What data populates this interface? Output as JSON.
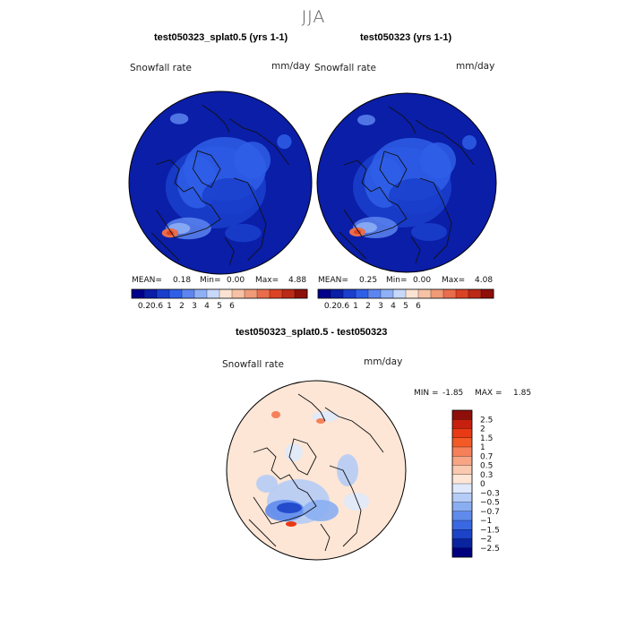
{
  "figure": {
    "season": "JJA",
    "panels": [
      {
        "title": "test050323_splat0.5 (yrs 1-1)",
        "variable": "Snowfall rate",
        "units": "mm/day",
        "stats": {
          "mean_label": "MEAN=",
          "mean": "0.18",
          "min_label": "Min=",
          "min": "0.00",
          "max_label": "Max=",
          "max": "4.88"
        }
      },
      {
        "title": "test050323 (yrs 1-1)",
        "variable": "Snowfall rate",
        "units": "mm/day",
        "stats": {
          "mean_label": "MEAN=",
          "mean": "0.25",
          "min_label": "Min=",
          "min": "0.00",
          "max_label": "Max=",
          "max": "4.08"
        }
      },
      {
        "title": "test050323_splat0.5 - test050323",
        "variable": "Snowfall rate",
        "units": "mm/day",
        "stats": {
          "min_label": "MIN =",
          "min": "-1.85",
          "max_label": "MAX =",
          "max": "1.85"
        }
      }
    ],
    "colorbar_abs": {
      "ticks": [
        "0.2",
        "0.6",
        "1",
        "2",
        "3",
        "4",
        "5",
        "6"
      ],
      "colors": [
        "#00008b",
        "#0a1ea8",
        "#1a3fcc",
        "#2f5fe8",
        "#5c85f0",
        "#8fb0f5",
        "#c7d8fa",
        "#fbe3d3",
        "#f6c1a5",
        "#f09a78",
        "#e96d4c",
        "#db4325",
        "#bb2a16",
        "#8e0f0a"
      ]
    },
    "colorbar_diff": {
      "labels": [
        "2.5",
        "2",
        "1.5",
        "1",
        "0.7",
        "0.5",
        "0.3",
        "0",
        "−0.3",
        "−0.5",
        "−0.7",
        "−1",
        "−1.5",
        "−2",
        "−2.5"
      ],
      "colors": [
        "#8e0f0a",
        "#c8200f",
        "#e83a14",
        "#f35a26",
        "#f5805a",
        "#f7a585",
        "#f9c9b0",
        "#fde6d6",
        "#dfe9fb",
        "#b5ccf6",
        "#8aaef2",
        "#5f8bec",
        "#3a68e2",
        "#1c44c8",
        "#0a24a0",
        "#00007f"
      ]
    }
  },
  "chart_data": [
    {
      "type": "heatmap",
      "title": "test050323_splat0.5 (yrs 1-1)",
      "variable": "Snowfall rate",
      "units": "mm/day",
      "projection": "north polar stereographic",
      "mean": 0.18,
      "min": 0.0,
      "max": 4.88,
      "colorbar_ticks": [
        0.2,
        0.6,
        1,
        2,
        3,
        4,
        5,
        6
      ]
    },
    {
      "type": "heatmap",
      "title": "test050323 (yrs 1-1)",
      "variable": "Snowfall rate",
      "units": "mm/day",
      "projection": "north polar stereographic",
      "mean": 0.25,
      "min": 0.0,
      "max": 4.08,
      "colorbar_ticks": [
        0.2,
        0.6,
        1,
        2,
        3,
        4,
        5,
        6
      ]
    },
    {
      "type": "heatmap",
      "title": "test050323_splat0.5 - test050323",
      "variable": "Snowfall rate",
      "units": "mm/day",
      "projection": "north polar stereographic",
      "min": -1.85,
      "max": 1.85,
      "colorbar_ticks": [
        2.5,
        2,
        1.5,
        1,
        0.7,
        0.5,
        0.3,
        0,
        -0.3,
        -0.5,
        -0.7,
        -1,
        -1.5,
        -2,
        -2.5
      ]
    }
  ]
}
